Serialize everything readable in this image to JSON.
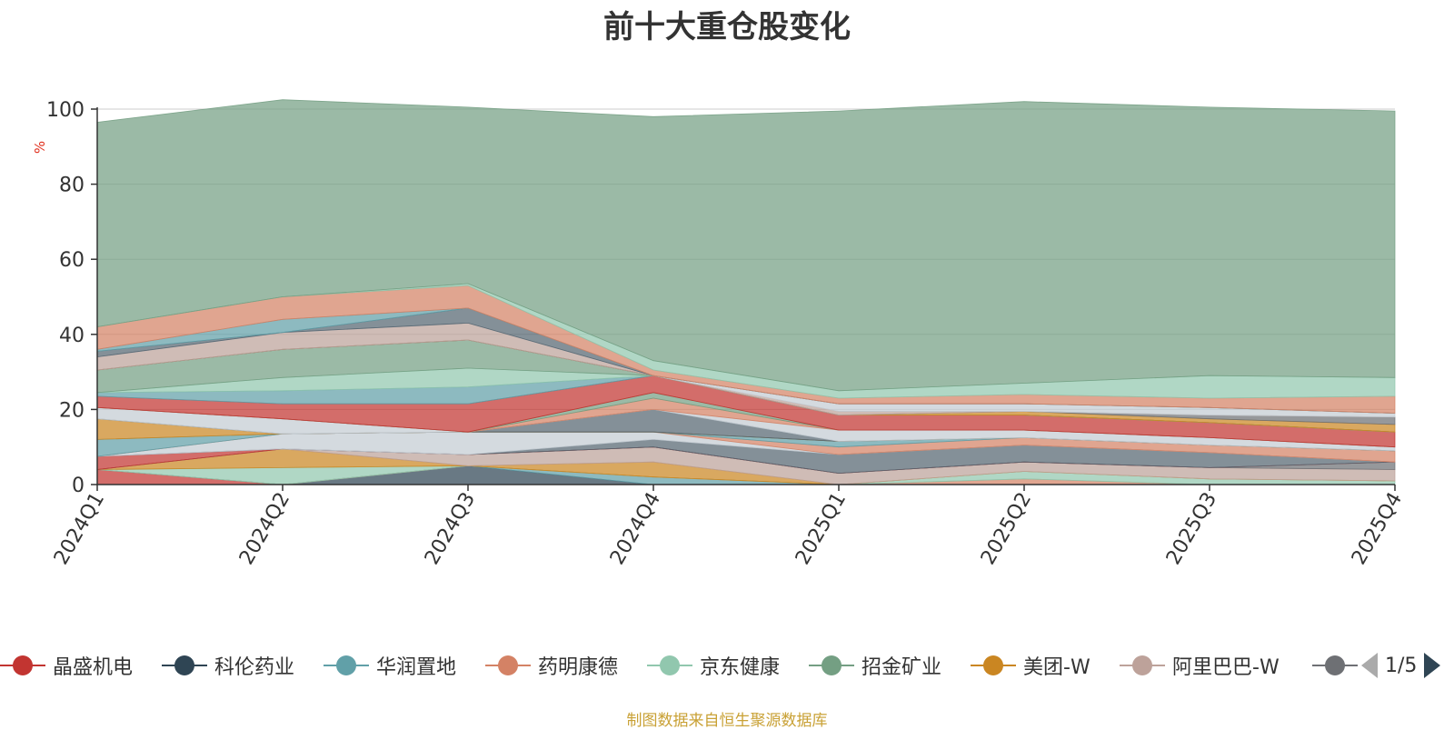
{
  "chart_data": {
    "type": "area",
    "stacked": true,
    "title": "前十大重仓股变化",
    "ylabel": "%",
    "ylim": [
      0,
      100
    ],
    "yticks": [
      0,
      20,
      40,
      60,
      80,
      100
    ],
    "grid": true,
    "legend_position": "bottom",
    "categories": [
      "2024Q1",
      "2024Q2",
      "2024Q3",
      "2024Q4",
      "2025Q1",
      "2025Q2",
      "2025Q3",
      "2025Q4"
    ],
    "series": [
      {
        "name": "晶盛机电",
        "color": "#c23531",
        "values": [
          4,
          0,
          0,
          0,
          0,
          0,
          0,
          0
        ]
      },
      {
        "name": "科伦药业",
        "color": "#2f4554",
        "values": [
          0,
          0,
          5,
          0,
          0,
          0,
          0,
          0
        ]
      },
      {
        "name": "华润置地",
        "color": "#61a0a8",
        "values": [
          0,
          0,
          0,
          2,
          0,
          0,
          0,
          0
        ]
      },
      {
        "name": "药明康德",
        "color": "#d48265",
        "values": [
          0,
          0,
          0,
          0,
          0,
          1.5,
          0,
          0
        ]
      },
      {
        "name": "京东健康",
        "color": "#91c7ae",
        "values": [
          0,
          4.5,
          0,
          0,
          0,
          2,
          1.5,
          1
        ]
      },
      {
        "name": "招金矿业",
        "color": "#749f83",
        "values": [
          0,
          0,
          0,
          0,
          0,
          0,
          0,
          0
        ]
      },
      {
        "name": "美团-W",
        "color": "#ca8622",
        "values": [
          0,
          5,
          0,
          4,
          0,
          0,
          0,
          0
        ]
      },
      {
        "name": "阿里巴巴-W",
        "color": "#bda29a",
        "values": [
          0,
          0,
          3,
          4,
          3,
          2.5,
          3,
          3
        ]
      },
      {
        "color": "#6e7074",
        "values": [
          0,
          0,
          0,
          0,
          0,
          0,
          0,
          2
        ]
      },
      {
        "color": "#c23531",
        "values": [
          3.5,
          0,
          0,
          0,
          0,
          0,
          0,
          0
        ]
      },
      {
        "color": "#546570",
        "values": [
          0,
          0,
          0,
          2,
          5,
          4.5,
          4,
          0
        ]
      },
      {
        "color": "#c4ccd3",
        "values": [
          0,
          4,
          6,
          2,
          0,
          0,
          0,
          0
        ]
      },
      {
        "color": "#d48265",
        "values": [
          0,
          0,
          0,
          0,
          2,
          2,
          2,
          3
        ]
      },
      {
        "color": "#61a0a8",
        "values": [
          4.5,
          0,
          0,
          0,
          1.5,
          0,
          0,
          0
        ]
      },
      {
        "color": "#ca8622",
        "values": [
          5.5,
          0,
          0,
          0,
          0,
          0,
          0,
          0
        ]
      },
      {
        "color": "#546570",
        "values": [
          0,
          0,
          0,
          6,
          0,
          0,
          0,
          0
        ]
      },
      {
        "color": "#c4ccd3",
        "values": [
          3,
          4,
          0,
          0,
          3,
          2,
          2,
          1
        ]
      },
      {
        "color": "#d48265",
        "values": [
          0,
          0,
          0,
          3,
          0,
          0,
          0,
          0
        ]
      },
      {
        "color": "#749f83",
        "values": [
          0,
          0,
          0,
          1.5,
          0,
          0,
          0,
          0
        ]
      },
      {
        "color": "#c23531",
        "values": [
          3,
          4,
          7.5,
          4.5,
          4,
          4,
          4,
          4
        ]
      },
      {
        "color": "#61a0a8",
        "values": [
          1,
          3.5,
          4.5,
          0,
          0,
          0,
          0,
          0
        ]
      },
      {
        "color": "#91c7ae",
        "values": [
          0,
          3.5,
          5,
          0,
          0,
          0,
          0,
          0
        ]
      },
      {
        "color": "#749f83",
        "values": [
          6,
          7.5,
          7.5,
          0,
          0,
          0,
          0,
          0
        ]
      },
      {
        "color": "#ca8622",
        "values": [
          0,
          0,
          0,
          0,
          0,
          1,
          1,
          2
        ]
      },
      {
        "color": "#6e7074",
        "values": [
          0,
          0,
          0,
          0,
          0,
          0,
          1,
          2
        ]
      },
      {
        "color": "#bda29a",
        "values": [
          3.5,
          4.5,
          4.5,
          0,
          1,
          0,
          0,
          0
        ]
      },
      {
        "color": "#c4ccd3",
        "values": [
          0,
          0,
          0,
          0,
          2,
          2,
          2,
          1
        ]
      },
      {
        "color": "#546570",
        "values": [
          1.5,
          0,
          4,
          0,
          0,
          0,
          0,
          0
        ]
      },
      {
        "color": "#61a0a8",
        "values": [
          0.5,
          3.5,
          0,
          0,
          0,
          0,
          0,
          0
        ]
      },
      {
        "color": "#d48265",
        "values": [
          6,
          6,
          6,
          1.5,
          1.5,
          2.5,
          2.5,
          4.5
        ]
      },
      {
        "color": "#91c7ae",
        "values": [
          0,
          0,
          0.5,
          2.5,
          2,
          3,
          6,
          5
        ]
      },
      {
        "color": "#749f83",
        "values": [
          54.5,
          52.5,
          47,
          65,
          74.5,
          75,
          71.5,
          71
        ]
      }
    ]
  },
  "legend": {
    "page": "1/5"
  },
  "footer": {
    "source": "制图数据来自恒生聚源数据库"
  }
}
